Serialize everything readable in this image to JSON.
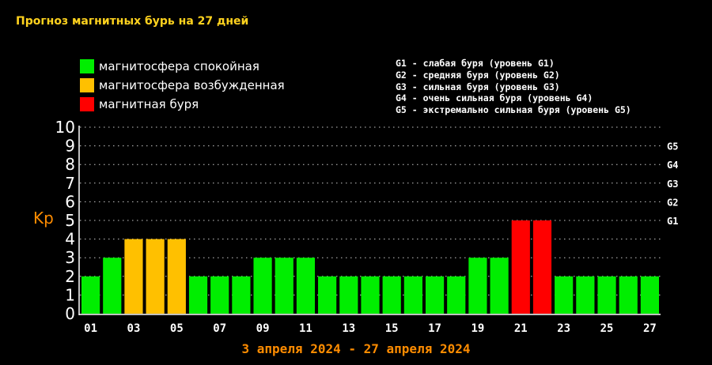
{
  "title": "Прогноз магнитных бурь на 27 дней",
  "legend": [
    {
      "label": "магнитосфера спокойная",
      "color": "#00ee00"
    },
    {
      "label": "магнитосфера возбужденная",
      "color": "#ffc000"
    },
    {
      "label": "магнитная буря",
      "color": "#ff0000"
    }
  ],
  "storm_levels": [
    "G1 - слабая буря (уровень G1)",
    "G2 - средняя буря (уровень G2)",
    "G3 - сильная буря (уровень G3)",
    "G4 - очень сильная буря (уровень G4)",
    "G5 - экстремально сильная буря (уровень G5)"
  ],
  "colors": {
    "quiet": "#00ee00",
    "active": "#ffc000",
    "storm": "#ff0000",
    "grid": "#c8c8c8",
    "text": "#ffffff",
    "accent": "#ff8c00",
    "title": "#ffd21e"
  },
  "chart_data": {
    "type": "bar",
    "title": "Прогноз магнитных бурь на 27 дней",
    "xlabel": "3 апреля 2024 - 27 апреля 2024",
    "ylabel": "Kp",
    "ylim": [
      0,
      10
    ],
    "yticks": [
      "0",
      "1",
      "2",
      "3",
      "4",
      "5",
      "6",
      "7",
      "8",
      "9",
      "10"
    ],
    "right_ticks": [
      {
        "value": 5,
        "label": "G1"
      },
      {
        "value": 6,
        "label": "G2"
      },
      {
        "value": 7,
        "label": "G3"
      },
      {
        "value": 8,
        "label": "G4"
      },
      {
        "value": 9,
        "label": "G5"
      }
    ],
    "x_tick_labels": [
      "01",
      "03",
      "05",
      "07",
      "09",
      "11",
      "13",
      "15",
      "17",
      "19",
      "21",
      "23",
      "25",
      "27"
    ],
    "categories": [
      "01",
      "02",
      "03",
      "04",
      "05",
      "06",
      "07",
      "08",
      "09",
      "10",
      "11",
      "12",
      "13",
      "14",
      "15",
      "16",
      "17",
      "18",
      "19",
      "20",
      "21",
      "22",
      "23",
      "24",
      "25",
      "26",
      "27"
    ],
    "values": [
      2,
      3,
      4,
      4,
      4,
      2,
      2,
      2,
      3,
      3,
      3,
      2,
      2,
      2,
      2,
      2,
      2,
      2,
      3,
      3,
      5,
      5,
      2,
      2,
      2,
      2,
      2
    ],
    "status": [
      "quiet",
      "quiet",
      "active",
      "active",
      "active",
      "quiet",
      "quiet",
      "quiet",
      "quiet",
      "quiet",
      "quiet",
      "quiet",
      "quiet",
      "quiet",
      "quiet",
      "quiet",
      "quiet",
      "quiet",
      "quiet",
      "quiet",
      "storm",
      "storm",
      "quiet",
      "quiet",
      "quiet",
      "quiet",
      "quiet"
    ],
    "grid": true,
    "legend_position": "top-left"
  }
}
